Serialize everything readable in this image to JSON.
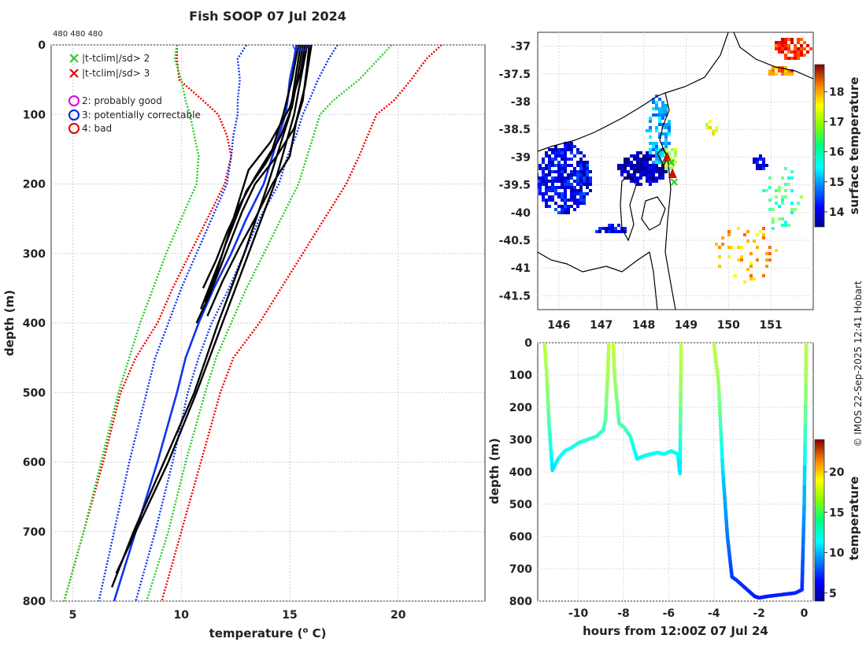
{
  "figure": {
    "title": "Fish SOOP 07 Jul 2024",
    "count_label": "480 480 480",
    "credit": "© IMOS 22-Sep-2025 12:41 Hobart"
  },
  "chart_data": [
    {
      "id": "profile",
      "type": "line",
      "xlabel": "temperature (",
      "xlabel_sup": "o",
      "xlabel_end": " C)",
      "ylabel": "depth (m)",
      "xlim": [
        4,
        24
      ],
      "ylim": [
        800,
        0
      ],
      "xticks": [
        "5",
        "10",
        "15",
        "20"
      ],
      "yticks": [
        "0",
        "100",
        "200",
        "300",
        "400",
        "500",
        "600",
        "700",
        "800"
      ],
      "grid": true,
      "legend": [
        {
          "label": "|t-tclim|/sd> 2",
          "marker": "x",
          "color": "#22cc22"
        },
        {
          "label": "|t-tclim|/sd> 3",
          "marker": "x",
          "color": "#dd0000"
        },
        {
          "label": "2: probably good",
          "marker": "o",
          "color": "#dd00dd"
        },
        {
          "label": "3: potentially correctable",
          "marker": "o",
          "color": "#0022dd"
        },
        {
          "label": "4: bad",
          "marker": "o",
          "color": "#dd0000"
        }
      ],
      "climatology": {
        "depth": [
          0,
          20,
          50,
          80,
          100,
          130,
          160,
          200,
          250,
          300,
          350,
          400,
          450,
          500,
          600,
          700,
          800
        ],
        "mean": [
          15.3,
          15.2,
          15.0,
          14.9,
          14.8,
          14.5,
          14.2,
          13.8,
          13.0,
          12.3,
          11.5,
          10.8,
          10.2,
          9.8,
          8.9,
          7.9,
          6.9
        ],
        "lower2": [
          13.0,
          12.6,
          12.7,
          12.6,
          12.6,
          12.4,
          12.3,
          12.1,
          11.4,
          10.7,
          10.0,
          9.4,
          8.8,
          8.4,
          7.6,
          6.9,
          6.2
        ],
        "upper2": [
          17.2,
          16.8,
          16.3,
          15.9,
          15.6,
          15.3,
          14.9,
          14.5,
          13.6,
          12.9,
          12.2,
          11.4,
          10.8,
          10.3,
          9.6,
          8.8,
          7.9
        ],
        "lower3": [
          9.8,
          9.7,
          10.0,
          10.2,
          10.4,
          10.6,
          10.8,
          10.7,
          10.0,
          9.3,
          8.7,
          8.1,
          7.6,
          7.1,
          6.3,
          5.5,
          4.6
        ],
        "upper3": [
          19.7,
          19.1,
          18.2,
          17.0,
          16.4,
          16.1,
          15.8,
          15.4,
          14.6,
          13.8,
          13.0,
          12.3,
          11.6,
          11.1,
          10.2,
          9.4,
          8.4
        ],
        "lower4": [
          9.8,
          9.8,
          9.9,
          11.0,
          11.7,
          12.1,
          12.3,
          12.0,
          11.2,
          10.4,
          9.6,
          8.9,
          7.9,
          7.2,
          6.4,
          5.5,
          4.6
        ],
        "upper4": [
          22.0,
          21.3,
          20.6,
          19.8,
          19.0,
          18.6,
          18.2,
          17.6,
          16.6,
          15.6,
          14.6,
          13.6,
          12.4,
          11.8,
          10.9,
          10.0,
          9.1
        ]
      },
      "profiles": [
        {
          "depth": [
            0,
            30,
            80,
            120,
            160,
            200,
            240,
            280,
            320,
            360,
            400
          ],
          "temp": [
            15.9,
            15.8,
            15.6,
            15.2,
            14.4,
            13.4,
            12.8,
            12.3,
            11.8,
            11.3,
            10.7
          ]
        },
        {
          "depth": [
            0,
            40,
            90,
            130,
            170,
            210,
            250,
            290,
            330,
            370
          ],
          "temp": [
            15.6,
            15.4,
            15.1,
            14.6,
            13.9,
            13.0,
            12.5,
            12.0,
            11.6,
            11.1
          ]
        },
        {
          "depth": [
            0,
            50,
            100,
            150,
            190,
            230,
            270,
            310,
            350
          ],
          "temp": [
            15.4,
            15.1,
            14.7,
            14.2,
            13.4,
            12.7,
            12.1,
            11.6,
            11.0
          ]
        },
        {
          "depth": [
            0,
            60,
            110,
            160,
            200,
            250,
            290,
            340,
            390
          ],
          "temp": [
            16.0,
            15.7,
            15.3,
            15.0,
            14.2,
            13.4,
            12.7,
            11.9,
            11.2
          ]
        },
        {
          "depth": [
            0,
            40,
            90,
            140,
            180,
            220,
            260,
            300,
            340,
            380
          ],
          "temp": [
            15.7,
            15.5,
            15.0,
            14.1,
            13.1,
            12.7,
            12.3,
            11.9,
            11.4,
            10.9
          ]
        },
        {
          "depth": [
            0,
            100,
            200,
            300,
            400,
            500,
            600,
            700,
            780
          ],
          "temp": [
            15.5,
            15.0,
            14.0,
            12.9,
            11.7,
            10.6,
            9.2,
            7.8,
            6.8
          ]
        },
        {
          "depth": [
            0,
            100,
            200,
            300,
            400,
            500,
            600,
            700,
            760
          ],
          "temp": [
            15.8,
            15.2,
            14.3,
            13.1,
            11.9,
            10.7,
            9.4,
            7.9,
            7.0
          ]
        }
      ],
      "flagged_points": [
        {
          "temp": 15.4,
          "depth": 0
        },
        {
          "temp": 15.6,
          "depth": 0
        }
      ]
    },
    {
      "id": "map",
      "type": "heatmap",
      "xlim": [
        145.5,
        152.0
      ],
      "ylim": [
        -41.75,
        -36.75
      ],
      "xticks": [
        "146",
        "147",
        "148",
        "149",
        "150",
        "151"
      ],
      "yticks": [
        "-37",
        "-37.5",
        "-38",
        "-38.5",
        "-39",
        "-39.5",
        "-40",
        "-40.5",
        "-41",
        "-41.5"
      ],
      "colorbar": {
        "label": "surface temperature",
        "range": [
          13.5,
          18.9
        ],
        "ticks": [
          "14",
          "15",
          "16",
          "17",
          "18"
        ]
      },
      "track": [
        {
          "lon": 148.55,
          "lat": -39.0,
          "flag": "red"
        },
        {
          "lon": 148.65,
          "lat": -39.1,
          "flag": "green"
        },
        {
          "lon": 148.68,
          "lat": -39.3,
          "flag": "red"
        },
        {
          "lon": 148.72,
          "lat": -39.45,
          "flag": "green"
        }
      ]
    },
    {
      "id": "section",
      "type": "line",
      "xlabel": "hours from 12:00Z 07 Jul 24",
      "ylabel": "depth (m)",
      "xlim": [
        -11.8,
        0.4
      ],
      "ylim": [
        800,
        0
      ],
      "xticks": [
        "-10",
        "-8",
        "-6",
        "-4",
        "-2",
        "0"
      ],
      "yticks": [
        "0",
        "100",
        "200",
        "300",
        "400",
        "500",
        "600",
        "700",
        "800"
      ],
      "colorbar": {
        "label": "temperature",
        "range": [
          4,
          24
        ],
        "ticks": [
          "5",
          "10",
          "15",
          "20"
        ]
      },
      "casts": [
        {
          "hours": [
            -11.5,
            -11.4,
            -11.3,
            -11.15,
            -10.9,
            -10.6,
            -10.3,
            -10.0,
            -9.6,
            -9.2,
            -8.9,
            -8.8,
            -8.7,
            -8.65
          ],
          "depth": [
            0,
            100,
            250,
            395,
            360,
            335,
            325,
            310,
            300,
            290,
            270,
            240,
            100,
            0
          ]
        },
        {
          "hours": [
            -8.45,
            -8.4,
            -8.2,
            -8.0,
            -7.7,
            -7.4,
            -7.1,
            -6.8,
            -6.5,
            -6.2,
            -5.9,
            -5.6,
            -5.5,
            -5.45
          ],
          "depth": [
            0,
            100,
            250,
            260,
            290,
            360,
            350,
            345,
            340,
            345,
            335,
            345,
            405,
            0
          ]
        },
        {
          "hours": [
            -4.0,
            -3.8,
            -3.6,
            -3.4,
            -3.2,
            -3.0,
            -2.6,
            -2.2,
            -2.0,
            -1.6,
            -1.0,
            -0.4,
            -0.1,
            0.0,
            0.1
          ],
          "depth": [
            0,
            120,
            400,
            600,
            725,
            735,
            760,
            785,
            790,
            785,
            780,
            775,
            765,
            500,
            0
          ]
        }
      ]
    }
  ]
}
